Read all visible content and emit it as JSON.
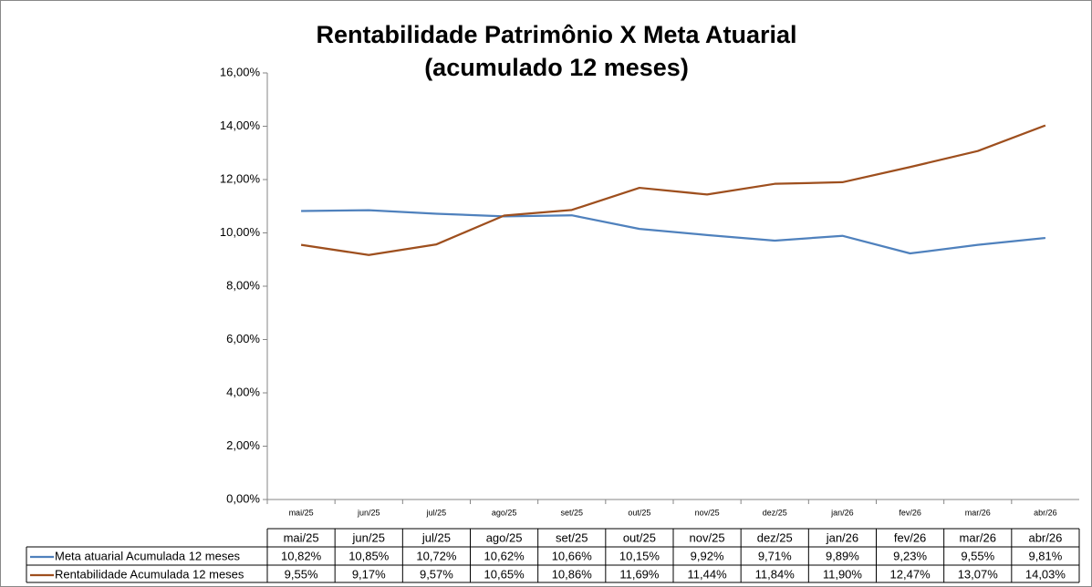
{
  "chart_data": {
    "type": "line",
    "title": [
      "Rentabilidade Patrimônio X Meta Atuarial",
      "(acumulado 12 meses)"
    ],
    "categories": [
      "mai/25",
      "jun/25",
      "jul/25",
      "ago/25",
      "set/25",
      "out/25",
      "nov/25",
      "dez/25",
      "jan/26",
      "fev/26",
      "mar/26",
      "abr/26"
    ],
    "series": [
      {
        "name": "Meta atuarial Acumulada 12 meses",
        "color": "#4f81bd",
        "values": [
          10.82,
          10.85,
          10.72,
          10.62,
          10.66,
          10.15,
          9.92,
          9.71,
          9.89,
          9.23,
          9.55,
          9.81
        ],
        "value_labels": [
          "10,82%",
          "10,85%",
          "10,72%",
          "10,62%",
          "10,66%",
          "10,15%",
          "9,92%",
          "9,71%",
          "9,89%",
          "9,23%",
          "9,55%",
          "9,81%"
        ]
      },
      {
        "name": "Rentabilidade Acumulada 12 meses",
        "color": "#9e4f1e",
        "values": [
          9.55,
          9.17,
          9.57,
          10.65,
          10.86,
          11.69,
          11.44,
          11.84,
          11.9,
          12.47,
          13.07,
          14.03
        ],
        "value_labels": [
          "9,55%",
          "9,17%",
          "9,57%",
          "10,65%",
          "10,86%",
          "11,69%",
          "11,44%",
          "11,84%",
          "11,90%",
          "12,47%",
          "13,07%",
          "14,03%"
        ]
      }
    ],
    "ylim": [
      0,
      16
    ],
    "yticks": [
      {
        "value": 0,
        "label": "0,00%"
      },
      {
        "value": 2,
        "label": "2,00%"
      },
      {
        "value": 4,
        "label": "4,00%"
      },
      {
        "value": 6,
        "label": "6,00%"
      },
      {
        "value": 8,
        "label": "8,00%"
      },
      {
        "value": 10,
        "label": "10,00%"
      },
      {
        "value": 12,
        "label": "12,00%"
      },
      {
        "value": 14,
        "label": "14,00%"
      },
      {
        "value": 16,
        "label": "16,00%"
      }
    ],
    "grid": false
  }
}
